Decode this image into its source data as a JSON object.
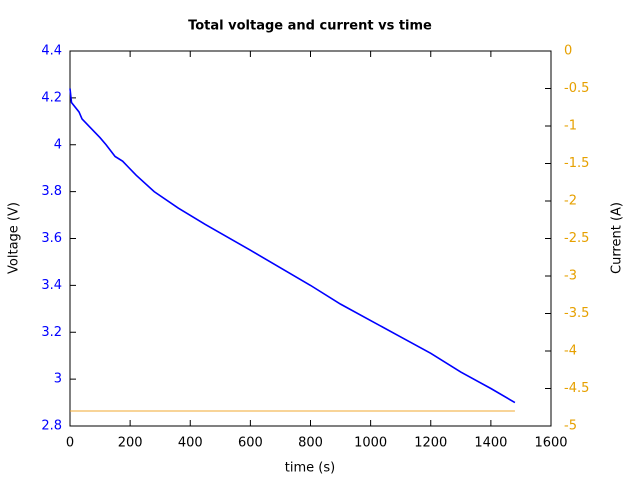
{
  "chart_data": {
    "type": "line",
    "title": "Total voltage and current vs time",
    "x_label": "time (s)",
    "y_label": "Voltage (V)",
    "y2_label": "Current (A)",
    "xlim": [
      0,
      1600
    ],
    "xticks": [
      0,
      200,
      400,
      600,
      800,
      1000,
      1200,
      1400,
      1600
    ],
    "ylim": [
      2.8,
      4.4
    ],
    "yticks": [
      2.8,
      3,
      3.2,
      3.4,
      3.6,
      3.8,
      4,
      4.2,
      4.4
    ],
    "y2lim": [
      -5,
      0
    ],
    "y2ticks": [
      0,
      -0.5,
      -1,
      -1.5,
      -2,
      -2.5,
      -3,
      -3.5,
      -4,
      -4.5,
      -5
    ],
    "y_color": "#0000ff",
    "y2_color": "#e6a000",
    "grid": false,
    "series": [
      {
        "name": "Voltage",
        "color": "#0000ff",
        "x": [
          0,
          5,
          30,
          40,
          70,
          100,
          120,
          150,
          175,
          220,
          280,
          360,
          450,
          600,
          800,
          900,
          1000,
          1100,
          1200,
          1300,
          1400,
          1480
        ],
        "values": [
          4.24,
          4.18,
          4.14,
          4.11,
          4.07,
          4.03,
          4.0,
          3.95,
          3.93,
          3.87,
          3.8,
          3.73,
          3.66,
          3.55,
          3.4,
          3.32,
          3.25,
          3.18,
          3.11,
          3.03,
          2.96,
          2.9
        ]
      },
      {
        "name": "Current",
        "color": "#f0a830",
        "axis": "y2",
        "x": [
          0,
          1480
        ],
        "values": [
          -4.8,
          -4.8
        ]
      }
    ]
  }
}
